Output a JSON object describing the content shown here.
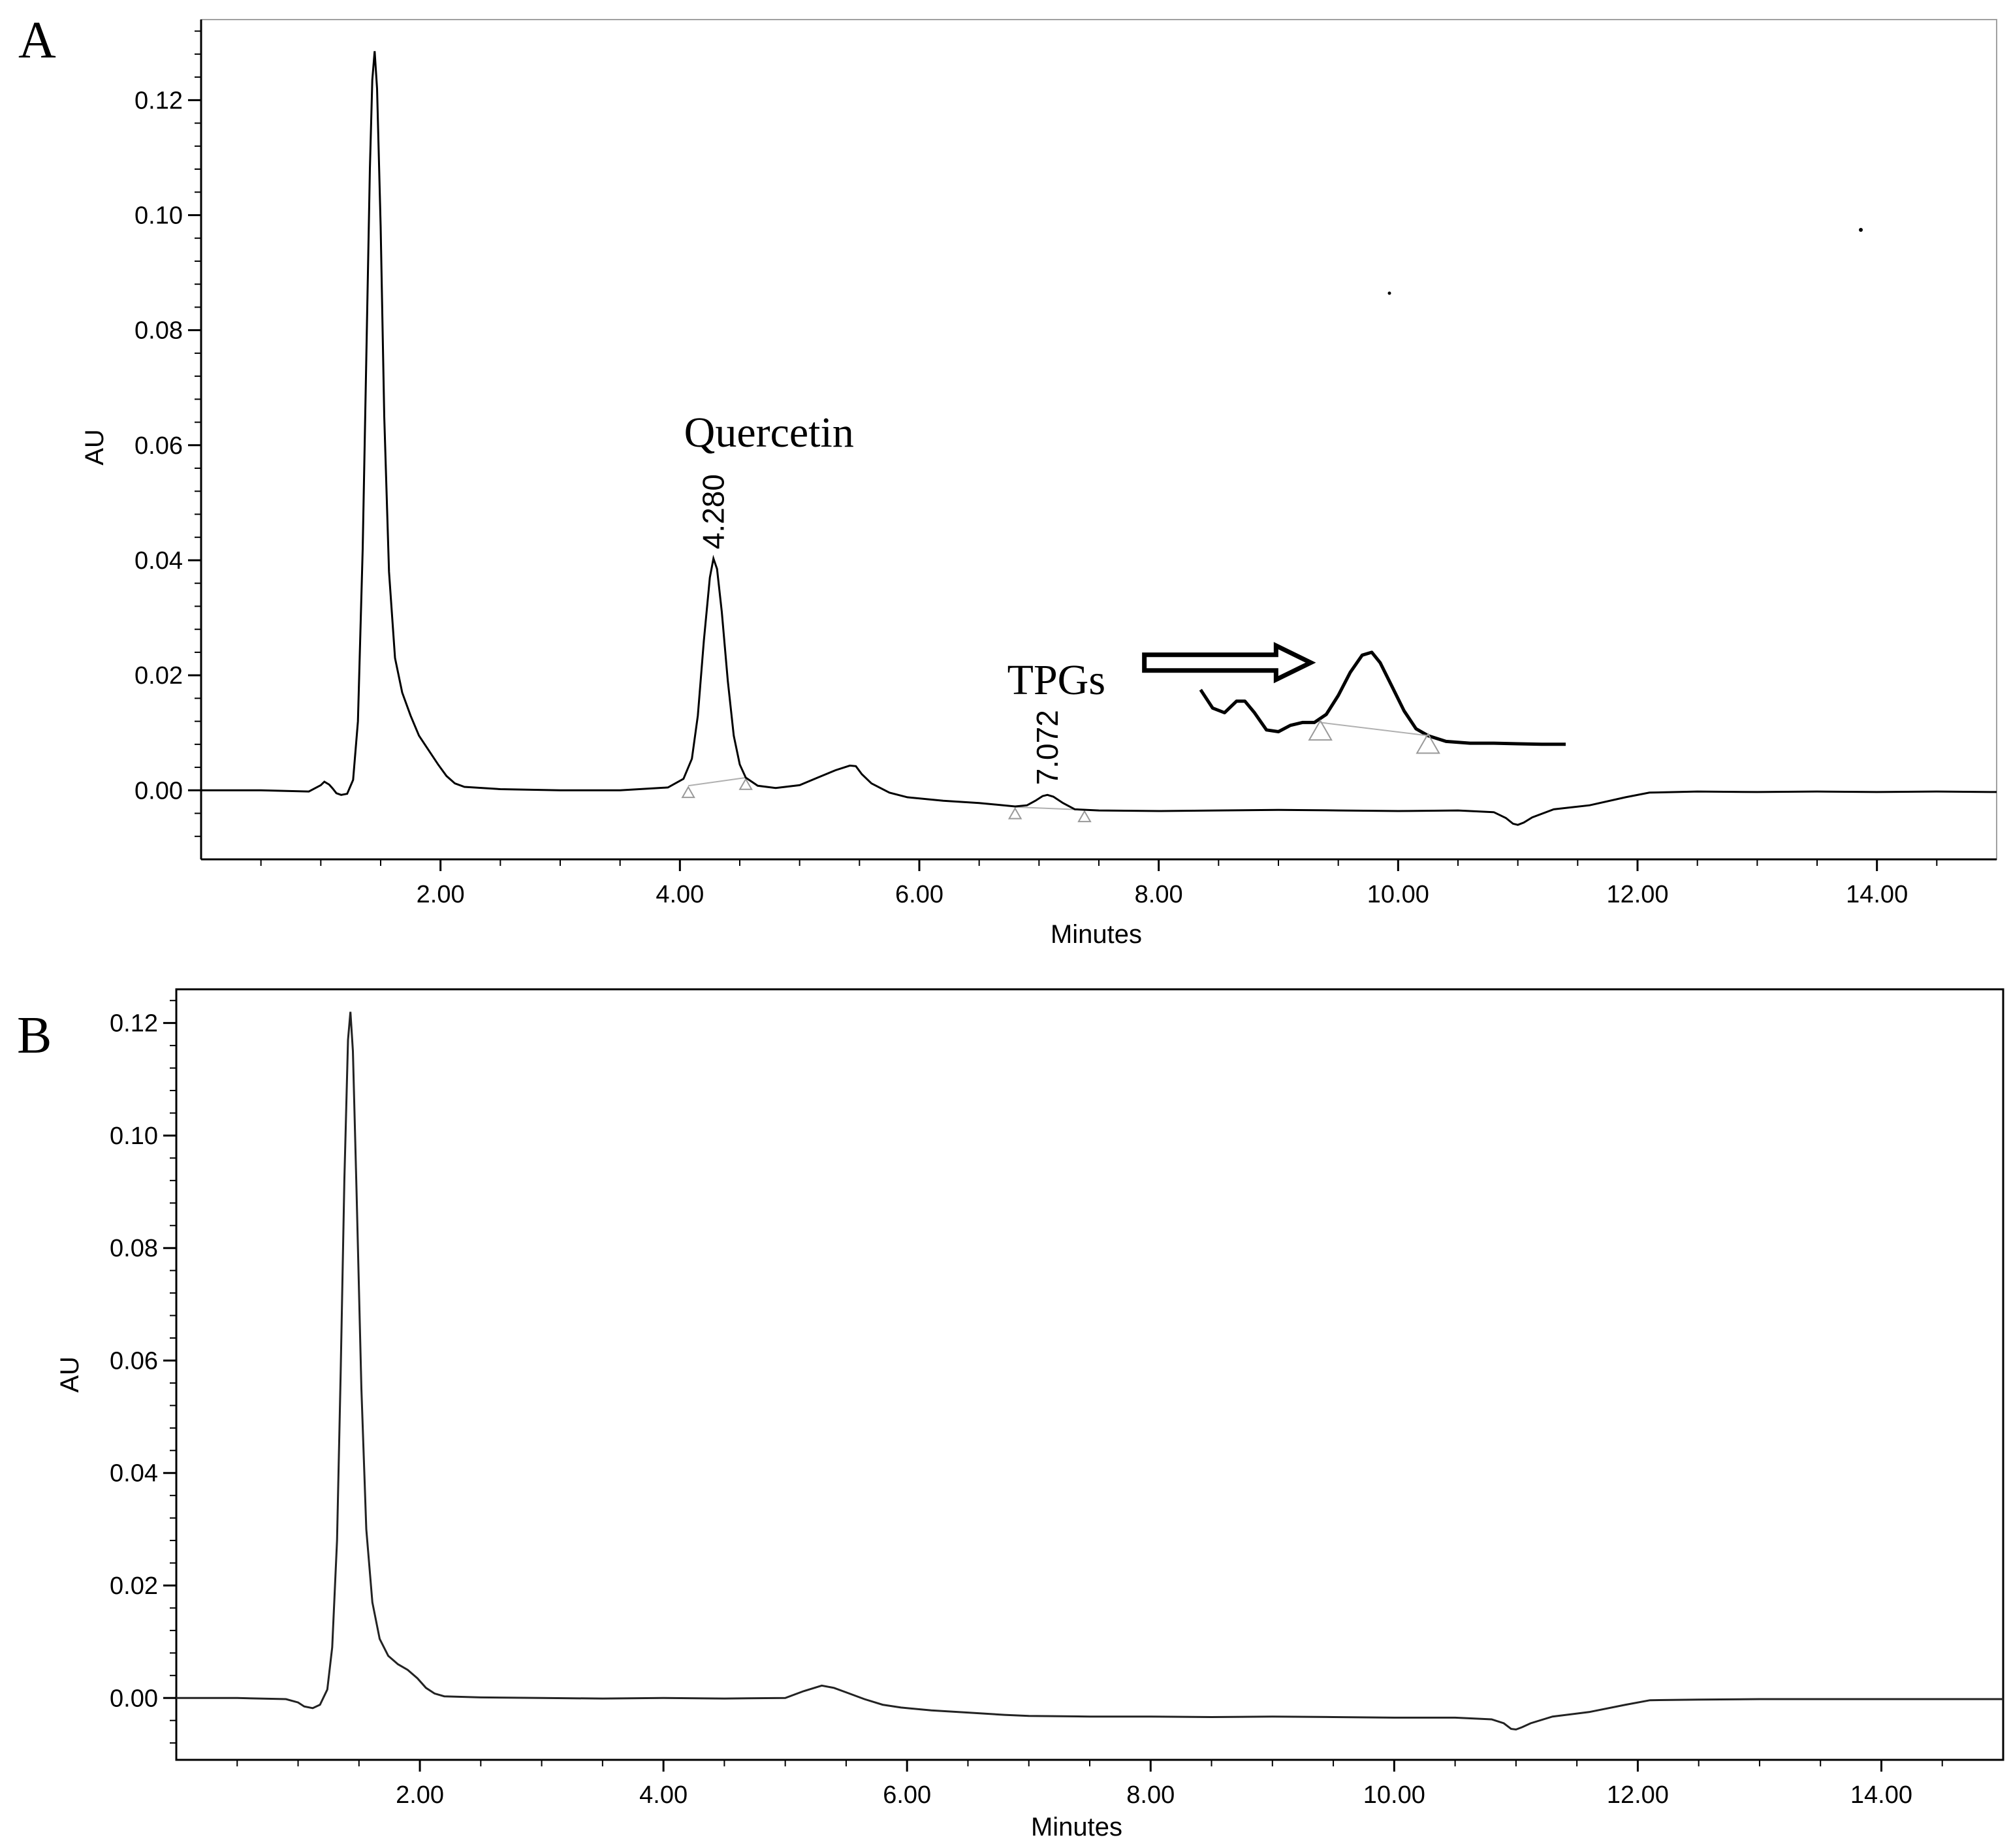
{
  "chart_data": [
    {
      "panel": "A",
      "type": "line",
      "xlabel": "Minutes",
      "ylabel": "AU",
      "xlim": [
        0,
        15
      ],
      "ylim": [
        -0.012,
        0.134
      ],
      "x_ticks": [
        2,
        4,
        6,
        8,
        10,
        12,
        14
      ],
      "x_tick_labels": [
        "2.00",
        "4.00",
        "6.00",
        "8.00",
        "10.00",
        "12.00",
        "14.00"
      ],
      "y_ticks": [
        0,
        0.02,
        0.04,
        0.06,
        0.08,
        0.1,
        0.12
      ],
      "y_tick_labels": [
        "0.00",
        "0.02",
        "0.04",
        "0.06",
        "0.08",
        "0.10",
        "0.12"
      ],
      "series": [
        {
          "name": "chromatogram",
          "x": [
            0.0,
            0.5,
            0.9,
            1.0,
            1.03,
            1.07,
            1.1,
            1.13,
            1.17,
            1.22,
            1.27,
            1.31,
            1.35,
            1.38,
            1.41,
            1.43,
            1.45,
            1.47,
            1.5,
            1.53,
            1.57,
            1.62,
            1.68,
            1.75,
            1.82,
            1.9,
            1.98,
            2.05,
            2.12,
            2.2,
            2.5,
            3.0,
            3.5,
            3.9,
            4.03,
            4.1,
            4.15,
            4.2,
            4.25,
            4.28,
            4.31,
            4.35,
            4.4,
            4.45,
            4.5,
            4.55,
            4.65,
            4.8,
            5.0,
            5.15,
            5.3,
            5.42,
            5.47,
            5.52,
            5.6,
            5.75,
            5.9,
            6.2,
            6.5,
            6.8,
            6.9,
            6.97,
            7.03,
            7.07,
            7.12,
            7.2,
            7.3,
            7.5,
            8.0,
            8.5,
            9.0,
            9.5,
            10.0,
            10.5,
            10.8,
            10.9,
            10.96,
            11.0,
            11.05,
            11.12,
            11.3,
            11.6,
            11.9,
            12.1,
            12.5,
            13.0,
            13.5,
            14.0,
            14.5,
            15.0
          ],
          "y": [
            0.0,
            0.0,
            -0.0002,
            0.0009,
            0.0015,
            0.001,
            0.0003,
            -0.0005,
            -0.0008,
            -0.0006,
            0.0018,
            0.012,
            0.042,
            0.075,
            0.108,
            0.1235,
            0.1285,
            0.122,
            0.098,
            0.065,
            0.038,
            0.023,
            0.017,
            0.013,
            0.0095,
            0.007,
            0.0045,
            0.0025,
            0.0012,
            0.0006,
            0.0002,
            0.0,
            0.0,
            0.0005,
            0.002,
            0.0055,
            0.013,
            0.026,
            0.037,
            0.0403,
            0.0385,
            0.031,
            0.019,
            0.0095,
            0.0045,
            0.0022,
            0.0008,
            0.0004,
            0.0009,
            0.0022,
            0.0035,
            0.0043,
            0.0042,
            0.0028,
            0.0012,
            -0.0004,
            -0.0012,
            -0.0018,
            -0.0022,
            -0.0028,
            -0.0026,
            -0.0018,
            -0.001,
            -0.0008,
            -0.0011,
            -0.0022,
            -0.0033,
            -0.0035,
            -0.0036,
            -0.0035,
            -0.0034,
            -0.0035,
            -0.0036,
            -0.0035,
            -0.0038,
            -0.0048,
            -0.0058,
            -0.006,
            -0.0056,
            -0.0047,
            -0.0033,
            -0.0026,
            -0.0012,
            -0.0004,
            -0.0002,
            -0.0003,
            -0.0002,
            -0.0003,
            -0.0002,
            -0.0003
          ]
        }
      ],
      "baseline_segments": [
        {
          "x": [
            4.07,
            4.55
          ],
          "y": [
            0.0008,
            0.0022
          ]
        },
        {
          "x": [
            6.8,
            7.38
          ],
          "y": [
            -0.0029,
            -0.0034
          ]
        }
      ],
      "annotations": [
        {
          "text": "Quercetin",
          "x": 4.1,
          "y": 0.062
        },
        {
          "text": "4.280",
          "x": 4.28,
          "y": 0.041,
          "rotation": -90
        },
        {
          "text": "TPGs",
          "x": 6.8,
          "y": 0.019
        },
        {
          "text": "7.072",
          "x": 7.07,
          "y": 0.0,
          "rotation": -90
        }
      ],
      "inset_zoom": {
        "description": "enlarged view of TPGs peak",
        "x": [
          8.35,
          8.45,
          8.55,
          8.65,
          8.72,
          8.8,
          8.9,
          9.0,
          9.1,
          9.2,
          9.3,
          9.4,
          9.5,
          9.6,
          9.7,
          9.78,
          9.85,
          9.95,
          10.05,
          10.15,
          10.25,
          10.4,
          10.6,
          10.8,
          11.0,
          11.2,
          11.4
        ],
        "y": [
          0.0175,
          0.0143,
          0.0135,
          0.0155,
          0.0155,
          0.0135,
          0.0105,
          0.0102,
          0.0113,
          0.0118,
          0.0118,
          0.0132,
          0.0165,
          0.0205,
          0.0235,
          0.024,
          0.0222,
          0.018,
          0.0138,
          0.0107,
          0.0095,
          0.0085,
          0.0082,
          0.0082,
          0.0081,
          0.008,
          0.008
        ],
        "markers_x": [
          9.35,
          10.25
        ]
      }
    },
    {
      "panel": "B",
      "type": "line",
      "xlabel": "Minutes",
      "ylabel": "AU",
      "xlim": [
        0,
        15
      ],
      "ylim": [
        -0.011,
        0.126
      ],
      "x_ticks": [
        2,
        4,
        6,
        8,
        10,
        12,
        14
      ],
      "x_tick_labels": [
        "2.00",
        "4.00",
        "6.00",
        "8.00",
        "10.00",
        "12.00",
        "14.00"
      ],
      "y_ticks": [
        0,
        0.02,
        0.04,
        0.06,
        0.08,
        0.1,
        0.12
      ],
      "y_tick_labels": [
        "0.00",
        "0.02",
        "0.04",
        "0.06",
        "0.08",
        "0.10",
        "0.12"
      ],
      "series": [
        {
          "name": "chromatogram",
          "x": [
            0.0,
            0.5,
            0.9,
            1.0,
            1.05,
            1.12,
            1.18,
            1.24,
            1.28,
            1.32,
            1.35,
            1.38,
            1.41,
            1.43,
            1.45,
            1.48,
            1.52,
            1.56,
            1.61,
            1.67,
            1.74,
            1.82,
            1.9,
            1.98,
            2.05,
            2.12,
            2.2,
            2.5,
            3.0,
            3.5,
            4.0,
            4.5,
            5.0,
            5.15,
            5.3,
            5.4,
            5.5,
            5.65,
            5.8,
            5.95,
            6.2,
            6.5,
            6.8,
            7.0,
            7.5,
            8.0,
            8.5,
            9.0,
            9.5,
            10.0,
            10.5,
            10.8,
            10.9,
            10.96,
            11.0,
            11.05,
            11.12,
            11.3,
            11.6,
            11.9,
            12.1,
            12.5,
            13.0,
            13.5,
            14.0,
            14.5,
            15.0
          ],
          "y": [
            0.0,
            0.0,
            -0.0002,
            -0.0008,
            -0.0015,
            -0.0018,
            -0.0012,
            0.0015,
            0.009,
            0.028,
            0.058,
            0.092,
            0.117,
            0.122,
            0.115,
            0.09,
            0.055,
            0.03,
            0.017,
            0.0105,
            0.0075,
            0.006,
            0.005,
            0.0035,
            0.0018,
            0.0008,
            0.0003,
            0.0001,
            0.0,
            -0.0001,
            0.0,
            -0.0001,
            0.0,
            0.0012,
            0.0022,
            0.0018,
            0.001,
            -0.0002,
            -0.0012,
            -0.0017,
            -0.0022,
            -0.0026,
            -0.003,
            -0.0032,
            -0.0033,
            -0.0033,
            -0.0034,
            -0.0033,
            -0.0034,
            -0.0035,
            -0.0035,
            -0.0038,
            -0.0045,
            -0.0055,
            -0.0056,
            -0.0052,
            -0.0045,
            -0.0033,
            -0.0025,
            -0.0012,
            -0.0004,
            -0.0003,
            -0.0002,
            -0.0002,
            -0.0002,
            -0.0002,
            -0.0002
          ]
        }
      ],
      "annotations": []
    }
  ],
  "panel_a": {
    "letter": "A",
    "xlabel": "Minutes",
    "ylabel": "AU"
  },
  "panel_b": {
    "letter": "B",
    "xlabel": "Minutes",
    "ylabel": "AU"
  }
}
